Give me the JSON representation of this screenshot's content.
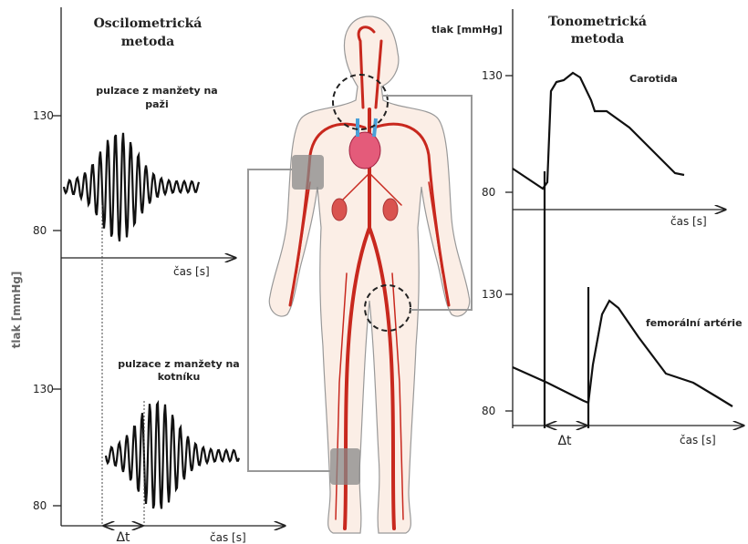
{
  "left_panel": {
    "title_line1": "Oscilometrická",
    "title_line2": "metoda",
    "y_axis_label": "tlak [mmHg]",
    "upper": {
      "caption_line1": "pulzace z manžety na",
      "caption_line2": "paži",
      "tick_high": "130",
      "tick_low": "80",
      "x_axis_label": "čas [s]"
    },
    "lower": {
      "caption_line1": "pulzace z manžety na",
      "caption_line2": "kotníku",
      "tick_high": "130",
      "tick_low": "80",
      "x_axis_label": "čas [s]"
    },
    "delta": "Δt"
  },
  "right_panel": {
    "title_line1": "Tonometrická",
    "title_line2": "metoda",
    "y_axis_label": "tlak [mmHg]",
    "upper": {
      "caption": "Carotida",
      "tick_high": "130",
      "tick_low": "80",
      "x_axis_label": "čas [s]"
    },
    "lower": {
      "caption": "femorální artérie",
      "tick_high": "130",
      "tick_low": "80",
      "x_axis_label": "čas [s]"
    },
    "delta": "Δt"
  }
}
